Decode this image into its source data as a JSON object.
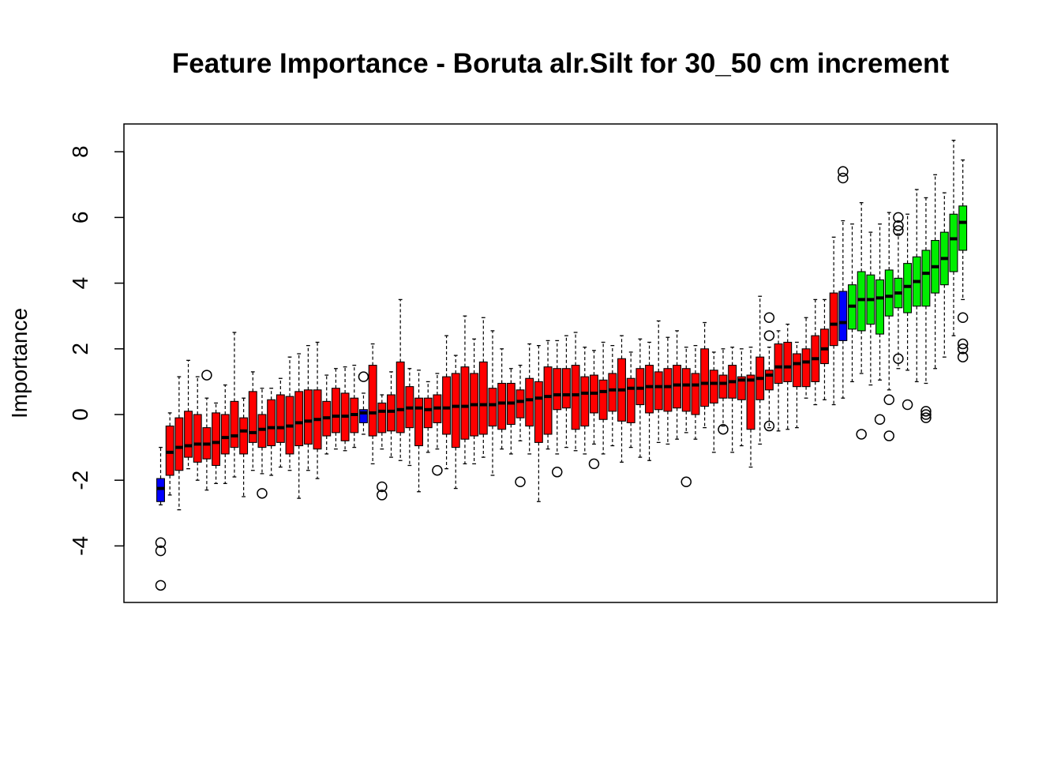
{
  "chart_data": {
    "type": "boxplot",
    "title": "Feature Importance - Boruta alr.Silt for 30_50 cm increment",
    "xlabel": "",
    "ylabel": "Importance",
    "ylim": [
      -5.6,
      9.0
    ],
    "yticks": [
      -4,
      -2,
      0,
      2,
      4,
      6,
      8
    ],
    "grid": false,
    "colors": {
      "rejected": "#ff0000",
      "shadow": "#0000ff",
      "confirmed": "#00ee00"
    },
    "boxes": [
      {
        "status": "shadow",
        "min": -2.75,
        "q1": -2.65,
        "median": -2.25,
        "q3": -1.95,
        "max": -1.0,
        "outliers": [
          -3.9,
          -4.15,
          -5.2
        ]
      },
      {
        "status": "rejected",
        "min": -2.45,
        "q1": -1.85,
        "median": -1.15,
        "q3": -0.35,
        "max": 0.05,
        "outliers": []
      },
      {
        "status": "rejected",
        "min": -2.9,
        "q1": -1.7,
        "median": -1.0,
        "q3": -0.1,
        "max": 1.15,
        "outliers": []
      },
      {
        "status": "rejected",
        "min": -1.65,
        "q1": -1.3,
        "median": -0.95,
        "q3": 0.1,
        "max": 1.65,
        "outliers": []
      },
      {
        "status": "rejected",
        "min": -2.0,
        "q1": -1.45,
        "median": -0.9,
        "q3": 0.0,
        "max": 1.15,
        "outliers": []
      },
      {
        "status": "rejected",
        "min": -2.3,
        "q1": -1.35,
        "median": -0.9,
        "q3": -0.4,
        "max": 0.5,
        "outliers": [
          1.2
        ]
      },
      {
        "status": "rejected",
        "min": -2.1,
        "q1": -1.55,
        "median": -0.85,
        "q3": 0.05,
        "max": 0.35,
        "outliers": []
      },
      {
        "status": "rejected",
        "min": -2.1,
        "q1": -1.2,
        "median": -0.7,
        "q3": 0.0,
        "max": 0.9,
        "outliers": []
      },
      {
        "status": "rejected",
        "min": -1.9,
        "q1": -1.0,
        "median": -0.65,
        "q3": 0.4,
        "max": 2.5,
        "outliers": []
      },
      {
        "status": "rejected",
        "min": -2.5,
        "q1": -1.2,
        "median": -0.5,
        "q3": -0.1,
        "max": 0.5,
        "outliers": []
      },
      {
        "status": "rejected",
        "min": -1.7,
        "q1": -0.85,
        "median": -0.55,
        "q3": 0.7,
        "max": 1.3,
        "outliers": []
      },
      {
        "status": "rejected",
        "min": -1.8,
        "q1": -1.0,
        "median": -0.45,
        "q3": 0.0,
        "max": 0.8,
        "outliers": [
          -2.4
        ]
      },
      {
        "status": "rejected",
        "min": -1.85,
        "q1": -0.95,
        "median": -0.4,
        "q3": 0.45,
        "max": 0.8,
        "outliers": []
      },
      {
        "status": "rejected",
        "min": -1.6,
        "q1": -0.85,
        "median": -0.4,
        "q3": 0.6,
        "max": 1.1,
        "outliers": []
      },
      {
        "status": "rejected",
        "min": -1.7,
        "q1": -1.2,
        "median": -0.35,
        "q3": 0.55,
        "max": 1.75,
        "outliers": []
      },
      {
        "status": "rejected",
        "min": -2.55,
        "q1": -0.95,
        "median": -0.25,
        "q3": 0.7,
        "max": 1.85,
        "outliers": []
      },
      {
        "status": "rejected",
        "min": -1.7,
        "q1": -0.9,
        "median": -0.2,
        "q3": 0.75,
        "max": 2.1,
        "outliers": []
      },
      {
        "status": "rejected",
        "min": -1.95,
        "q1": -1.05,
        "median": -0.15,
        "q3": 0.75,
        "max": 2.2,
        "outliers": []
      },
      {
        "status": "rejected",
        "min": -1.2,
        "q1": -0.65,
        "median": -0.1,
        "q3": 0.4,
        "max": 1.2,
        "outliers": []
      },
      {
        "status": "rejected",
        "min": -1.05,
        "q1": -0.55,
        "median": -0.05,
        "q3": 0.8,
        "max": 1.4,
        "outliers": []
      },
      {
        "status": "rejected",
        "min": -1.1,
        "q1": -0.8,
        "median": -0.05,
        "q3": 0.65,
        "max": 1.45,
        "outliers": []
      },
      {
        "status": "rejected",
        "min": -1.0,
        "q1": -0.55,
        "median": 0.0,
        "q3": 0.5,
        "max": 1.5,
        "outliers": []
      },
      {
        "status": "shadow",
        "min": -0.6,
        "q1": -0.25,
        "median": 0.05,
        "q3": 0.15,
        "max": 0.65,
        "outliers": [
          1.15
        ]
      },
      {
        "status": "rejected",
        "min": -1.5,
        "q1": -0.65,
        "median": 0.05,
        "q3": 1.5,
        "max": 2.15,
        "outliers": []
      },
      {
        "status": "rejected",
        "min": -1.05,
        "q1": -0.55,
        "median": 0.1,
        "q3": 0.35,
        "max": 0.6,
        "outliers": [
          -2.2,
          -2.45
        ]
      },
      {
        "status": "rejected",
        "min": -1.3,
        "q1": -0.5,
        "median": 0.1,
        "q3": 0.6,
        "max": 1.3,
        "outliers": []
      },
      {
        "status": "rejected",
        "min": -1.4,
        "q1": -0.55,
        "median": 0.15,
        "q3": 1.6,
        "max": 3.5,
        "outliers": []
      },
      {
        "status": "rejected",
        "min": -1.55,
        "q1": -0.4,
        "median": 0.2,
        "q3": 0.85,
        "max": 1.4,
        "outliers": []
      },
      {
        "status": "rejected",
        "min": -2.35,
        "q1": -0.95,
        "median": 0.2,
        "q3": 0.5,
        "max": 1.35,
        "outliers": []
      },
      {
        "status": "rejected",
        "min": -1.15,
        "q1": -0.4,
        "median": 0.15,
        "q3": 0.5,
        "max": 1.0,
        "outliers": []
      },
      {
        "status": "rejected",
        "min": -1.05,
        "q1": -0.25,
        "median": 0.2,
        "q3": 0.6,
        "max": 1.25,
        "outliers": [
          -1.7
        ]
      },
      {
        "status": "rejected",
        "min": -1.65,
        "q1": -0.6,
        "median": 0.2,
        "q3": 1.15,
        "max": 2.4,
        "outliers": []
      },
      {
        "status": "rejected",
        "min": -2.25,
        "q1": -1.0,
        "median": 0.25,
        "q3": 1.25,
        "max": 1.8,
        "outliers": []
      },
      {
        "status": "rejected",
        "min": -1.5,
        "q1": -0.75,
        "median": 0.25,
        "q3": 1.45,
        "max": 3.0,
        "outliers": []
      },
      {
        "status": "rejected",
        "min": -1.5,
        "q1": -0.65,
        "median": 0.3,
        "q3": 1.25,
        "max": 2.3,
        "outliers": []
      },
      {
        "status": "rejected",
        "min": -1.3,
        "q1": -0.6,
        "median": 0.3,
        "q3": 1.6,
        "max": 2.95,
        "outliers": []
      },
      {
        "status": "rejected",
        "min": -1.85,
        "q1": -0.35,
        "median": 0.3,
        "q3": 0.8,
        "max": 2.55,
        "outliers": []
      },
      {
        "status": "rejected",
        "min": -1.05,
        "q1": -0.45,
        "median": 0.35,
        "q3": 0.95,
        "max": 2.0,
        "outliers": []
      },
      {
        "status": "rejected",
        "min": -1.2,
        "q1": -0.3,
        "median": 0.35,
        "q3": 0.95,
        "max": 1.4,
        "outliers": []
      },
      {
        "status": "rejected",
        "min": -0.8,
        "q1": -0.1,
        "median": 0.4,
        "q3": 0.75,
        "max": 1.5,
        "outliers": [
          -2.05
        ]
      },
      {
        "status": "rejected",
        "min": -1.2,
        "q1": -0.35,
        "median": 0.45,
        "q3": 1.1,
        "max": 2.15,
        "outliers": []
      },
      {
        "status": "rejected",
        "min": -2.65,
        "q1": -0.85,
        "median": 0.5,
        "q3": 1.0,
        "max": 2.1,
        "outliers": []
      },
      {
        "status": "rejected",
        "min": -1.05,
        "q1": -0.6,
        "median": 0.55,
        "q3": 1.45,
        "max": 2.25,
        "outliers": []
      },
      {
        "status": "rejected",
        "min": -1.2,
        "q1": 0.15,
        "median": 0.6,
        "q3": 1.4,
        "max": 2.25,
        "outliers": [
          -1.75
        ]
      },
      {
        "status": "rejected",
        "min": -1.0,
        "q1": 0.2,
        "median": 0.6,
        "q3": 1.4,
        "max": 2.4,
        "outliers": []
      },
      {
        "status": "rejected",
        "min": -1.1,
        "q1": -0.45,
        "median": 0.6,
        "q3": 1.5,
        "max": 2.5,
        "outliers": []
      },
      {
        "status": "rejected",
        "min": -1.2,
        "q1": -0.35,
        "median": 0.65,
        "q3": 1.15,
        "max": 2.05,
        "outliers": []
      },
      {
        "status": "rejected",
        "min": -0.9,
        "q1": 0.05,
        "median": 0.65,
        "q3": 1.2,
        "max": 1.95,
        "outliers": [
          -1.5
        ]
      },
      {
        "status": "rejected",
        "min": -1.2,
        "q1": -0.15,
        "median": 0.7,
        "q3": 1.05,
        "max": 2.2,
        "outliers": []
      },
      {
        "status": "rejected",
        "min": -0.95,
        "q1": 0.1,
        "median": 0.75,
        "q3": 1.25,
        "max": 2.1,
        "outliers": []
      },
      {
        "status": "rejected",
        "min": -1.45,
        "q1": -0.2,
        "median": 0.75,
        "q3": 1.7,
        "max": 2.4,
        "outliers": []
      },
      {
        "status": "rejected",
        "min": -1.0,
        "q1": -0.25,
        "median": 0.8,
        "q3": 1.1,
        "max": 1.9,
        "outliers": []
      },
      {
        "status": "rejected",
        "min": -1.3,
        "q1": 0.3,
        "median": 0.8,
        "q3": 1.4,
        "max": 2.3,
        "outliers": []
      },
      {
        "status": "rejected",
        "min": -1.4,
        "q1": 0.05,
        "median": 0.85,
        "q3": 1.5,
        "max": 2.2,
        "outliers": []
      },
      {
        "status": "rejected",
        "min": -0.85,
        "q1": 0.15,
        "median": 0.85,
        "q3": 1.3,
        "max": 2.85,
        "outliers": []
      },
      {
        "status": "rejected",
        "min": -0.9,
        "q1": 0.1,
        "median": 0.85,
        "q3": 1.4,
        "max": 2.35,
        "outliers": []
      },
      {
        "status": "rejected",
        "min": -0.75,
        "q1": 0.2,
        "median": 0.9,
        "q3": 1.5,
        "max": 2.55,
        "outliers": []
      },
      {
        "status": "rejected",
        "min": -0.55,
        "q1": 0.1,
        "median": 0.9,
        "q3": 1.4,
        "max": 2.05,
        "outliers": [
          -2.05
        ]
      },
      {
        "status": "rejected",
        "min": -0.75,
        "q1": 0.0,
        "median": 0.9,
        "q3": 1.25,
        "max": 2.1,
        "outliers": []
      },
      {
        "status": "rejected",
        "min": -0.4,
        "q1": 0.25,
        "median": 0.95,
        "q3": 2.0,
        "max": 2.8,
        "outliers": []
      },
      {
        "status": "rejected",
        "min": -1.15,
        "q1": 0.35,
        "median": 0.95,
        "q3": 1.35,
        "max": 1.9,
        "outliers": []
      },
      {
        "status": "rejected",
        "min": -0.35,
        "q1": 0.5,
        "median": 0.95,
        "q3": 1.2,
        "max": 2.0,
        "outliers": [
          -0.45
        ]
      },
      {
        "status": "rejected",
        "min": -1.15,
        "q1": 0.5,
        "median": 1.0,
        "q3": 1.5,
        "max": 2.05,
        "outliers": []
      },
      {
        "status": "rejected",
        "min": -0.95,
        "q1": 0.45,
        "median": 1.05,
        "q3": 1.15,
        "max": 2.0,
        "outliers": []
      },
      {
        "status": "rejected",
        "min": -1.6,
        "q1": -0.45,
        "median": 1.05,
        "q3": 1.2,
        "max": 2.05,
        "outliers": []
      },
      {
        "status": "rejected",
        "min": -0.9,
        "q1": 0.45,
        "median": 1.1,
        "q3": 1.75,
        "max": 3.6,
        "outliers": []
      },
      {
        "status": "rejected",
        "min": -0.4,
        "q1": 0.75,
        "median": 1.2,
        "q3": 1.35,
        "max": 2.05,
        "outliers": [
          2.95,
          2.4,
          -0.35
        ]
      },
      {
        "status": "rejected",
        "min": -0.5,
        "q1": 0.95,
        "median": 1.45,
        "q3": 2.15,
        "max": 2.55,
        "outliers": []
      },
      {
        "status": "rejected",
        "min": -0.45,
        "q1": 1.0,
        "median": 1.45,
        "q3": 2.2,
        "max": 2.75,
        "outliers": []
      },
      {
        "status": "rejected",
        "min": -0.4,
        "q1": 0.85,
        "median": 1.55,
        "q3": 1.85,
        "max": 2.2,
        "outliers": []
      },
      {
        "status": "rejected",
        "min": 0.5,
        "q1": 0.85,
        "median": 1.6,
        "q3": 2.0,
        "max": 2.95,
        "outliers": []
      },
      {
        "status": "rejected",
        "min": 0.3,
        "q1": 1.0,
        "median": 1.7,
        "q3": 2.4,
        "max": 3.5,
        "outliers": []
      },
      {
        "status": "rejected",
        "min": 0.45,
        "q1": 1.55,
        "median": 2.0,
        "q3": 2.6,
        "max": 3.5,
        "outliers": []
      },
      {
        "status": "rejected",
        "min": 0.3,
        "q1": 2.1,
        "median": 2.75,
        "q3": 3.7,
        "max": 5.4,
        "outliers": []
      },
      {
        "status": "shadow",
        "min": 0.5,
        "q1": 2.25,
        "median": 2.8,
        "q3": 3.75,
        "max": 5.9,
        "outliers": [
          7.4,
          7.2
        ]
      },
      {
        "status": "confirmed",
        "min": 1.0,
        "q1": 2.6,
        "median": 3.3,
        "q3": 3.95,
        "max": 5.8,
        "outliers": []
      },
      {
        "status": "confirmed",
        "min": 1.25,
        "q1": 2.55,
        "median": 3.5,
        "q3": 4.35,
        "max": 6.45,
        "outliers": [
          -0.6
        ]
      },
      {
        "status": "confirmed",
        "min": 0.9,
        "q1": 2.75,
        "median": 3.5,
        "q3": 4.25,
        "max": 5.55,
        "outliers": []
      },
      {
        "status": "confirmed",
        "min": 1.05,
        "q1": 2.45,
        "median": 3.55,
        "q3": 4.1,
        "max": 5.8,
        "outliers": [
          -0.15
        ]
      },
      {
        "status": "confirmed",
        "min": 0.75,
        "q1": 3.0,
        "median": 3.6,
        "q3": 4.4,
        "max": 6.15,
        "outliers": [
          0.45,
          -0.65
        ]
      },
      {
        "status": "confirmed",
        "min": 1.4,
        "q1": 3.25,
        "median": 3.7,
        "q3": 4.15,
        "max": 5.5,
        "outliers": [
          6.0,
          5.75,
          5.6,
          1.7
        ]
      },
      {
        "status": "confirmed",
        "min": 1.35,
        "q1": 3.1,
        "median": 3.9,
        "q3": 4.6,
        "max": 6.1,
        "outliers": [
          0.3
        ]
      },
      {
        "status": "confirmed",
        "min": 1.0,
        "q1": 3.3,
        "median": 4.05,
        "q3": 4.8,
        "max": 6.85,
        "outliers": []
      },
      {
        "status": "confirmed",
        "min": 0.95,
        "q1": 3.3,
        "median": 4.3,
        "q3": 5.0,
        "max": 6.6,
        "outliers": [
          0.1,
          0.0,
          -0.1
        ]
      },
      {
        "status": "confirmed",
        "min": 1.4,
        "q1": 3.7,
        "median": 4.5,
        "q3": 5.3,
        "max": 7.3,
        "outliers": []
      },
      {
        "status": "confirmed",
        "min": 1.75,
        "q1": 3.95,
        "median": 4.75,
        "q3": 5.55,
        "max": 6.75,
        "outliers": []
      },
      {
        "status": "confirmed",
        "min": 2.4,
        "q1": 4.35,
        "median": 5.35,
        "q3": 6.1,
        "max": 8.35,
        "outliers": []
      },
      {
        "status": "confirmed",
        "min": 3.5,
        "q1": 5.0,
        "median": 5.85,
        "q3": 6.35,
        "max": 7.75,
        "outliers": [
          2.95,
          2.15,
          2.0,
          1.75
        ]
      }
    ]
  }
}
